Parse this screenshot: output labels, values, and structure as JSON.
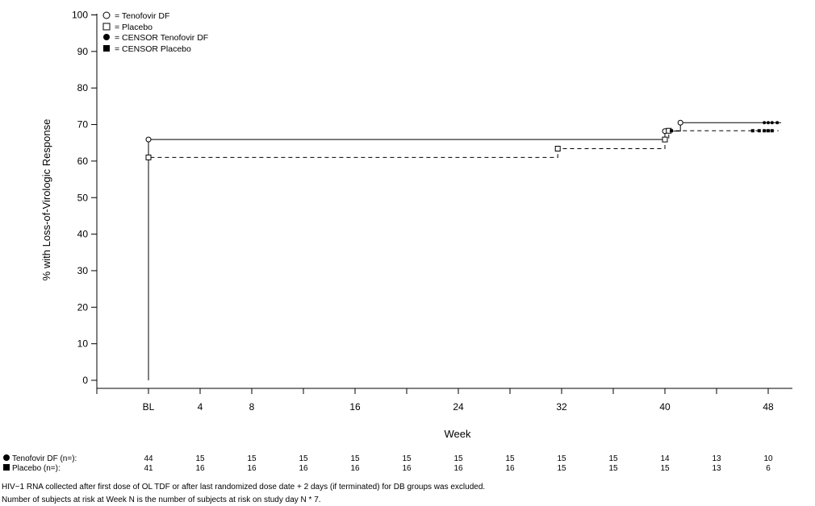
{
  "chart_data": {
    "type": "line",
    "xlabel": "Week",
    "ylabel": "% with Loss-of-Virologic Response",
    "ylim": [
      0,
      100
    ],
    "yticks": [
      "0",
      "10",
      "20",
      "30",
      "40",
      "50",
      "60",
      "70",
      "80",
      "90",
      "100"
    ],
    "xticks": [
      {
        "label": "BL",
        "value": 0
      },
      {
        "label": "4",
        "value": 4
      },
      {
        "label": "8",
        "value": 8
      },
      {
        "label": "16",
        "value": 16
      },
      {
        "label": "24",
        "value": 24
      },
      {
        "label": "32",
        "value": 32
      },
      {
        "label": "40",
        "value": 40
      },
      {
        "label": "48",
        "value": 48
      }
    ],
    "xlim": [
      -4,
      54
    ],
    "legend": [
      {
        "symbol": "open-circle",
        "text": "= Tenofovir DF"
      },
      {
        "symbol": "open-square",
        "text": "= Placebo"
      },
      {
        "symbol": "filled-circle",
        "text": "= CENSOR Tenofovir DF"
      },
      {
        "symbol": "filled-square",
        "text": "= CENSOR Placebo"
      }
    ],
    "legend_position": "top-left",
    "series": [
      {
        "name": "Tenofovir DF",
        "style": "solid",
        "points": [
          [
            0,
            0
          ],
          [
            0,
            65.9
          ],
          [
            40,
            65.9
          ],
          [
            40,
            68.2
          ],
          [
            41.2,
            68.2
          ],
          [
            41.2,
            70.5
          ],
          [
            49,
            70.5
          ]
        ],
        "events": [
          [
            0,
            65.9
          ],
          [
            40,
            68.2
          ],
          [
            41.2,
            70.5
          ]
        ],
        "censored": [
          [
            47.7,
            70.5
          ],
          [
            48,
            70.5
          ],
          [
            48.3,
            70.5
          ],
          [
            48.7,
            70.5
          ]
        ]
      },
      {
        "name": "Placebo",
        "style": "dashed",
        "points": [
          [
            0,
            0
          ],
          [
            0,
            61.0
          ],
          [
            31.7,
            61.0
          ],
          [
            31.7,
            63.4
          ],
          [
            40,
            63.4
          ],
          [
            40,
            65.9
          ],
          [
            40.3,
            65.9
          ],
          [
            40.3,
            68.3
          ],
          [
            48.8,
            68.3
          ]
        ],
        "events": [
          [
            0,
            61.0
          ],
          [
            31.7,
            63.4
          ],
          [
            40,
            65.9
          ],
          [
            40.3,
            68.3
          ]
        ],
        "censored": [
          [
            40.5,
            68.3
          ],
          [
            46.8,
            68.3
          ],
          [
            47.3,
            68.3
          ],
          [
            47.7,
            68.3
          ],
          [
            48.0,
            68.3
          ],
          [
            48.3,
            68.3
          ]
        ]
      }
    ],
    "risk_table": {
      "columns": [
        0,
        4,
        8,
        12,
        16,
        20,
        24,
        28,
        32,
        36,
        40,
        44,
        48
      ],
      "rows": [
        {
          "label": "Tenofovir DF (n=):",
          "symbol": "filled-circle",
          "values": [
            "44",
            "15",
            "15",
            "15",
            "15",
            "15",
            "15",
            "15",
            "15",
            "15",
            "14",
            "13",
            "10"
          ]
        },
        {
          "label": "Placebo (n=):",
          "symbol": "filled-square",
          "values": [
            "41",
            "16",
            "16",
            "16",
            "16",
            "16",
            "16",
            "16",
            "15",
            "15",
            "15",
            "13",
            "6"
          ]
        }
      ]
    }
  },
  "footnotes": [
    "HIV−1 RNA collected after first dose of OL TDF or after last randomized dose date + 2 days (if terminated) for DB groups was excluded.",
    "Number of subjects at risk at Week N is the number of subjects at risk on study day N * 7."
  ]
}
